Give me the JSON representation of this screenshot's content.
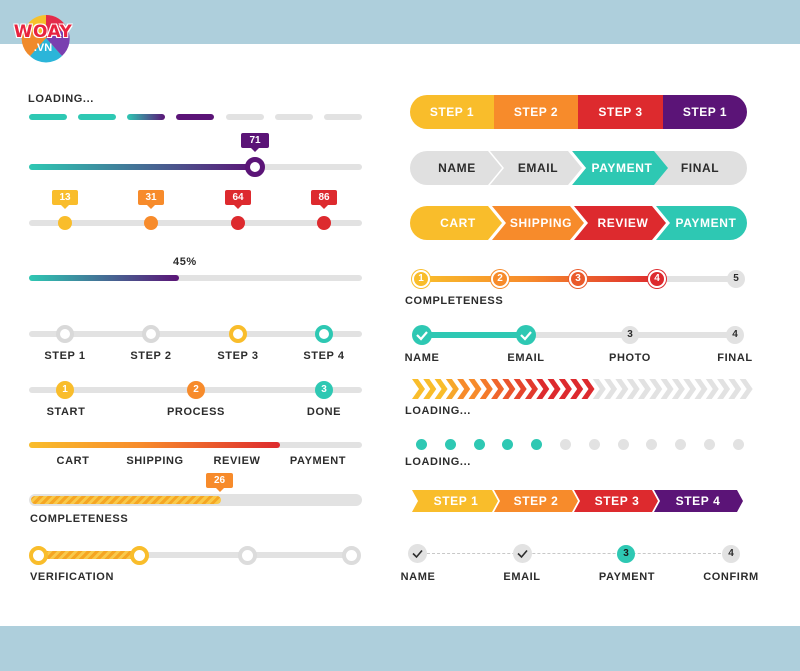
{
  "logo": {
    "word": "WOAY",
    "domain": ".VN"
  },
  "left": {
    "loading_label": "LOADING...",
    "slider_value": "71",
    "markers": [
      "13",
      "31",
      "64",
      "86"
    ],
    "progress_percent": "45%",
    "progress_value": 45,
    "steps_a": [
      "STEP 1",
      "STEP 2",
      "STEP 3",
      "STEP 4"
    ],
    "steps_b": {
      "nums": [
        "1",
        "2",
        "3"
      ],
      "labels": [
        "START",
        "PROCESS",
        "DONE"
      ]
    },
    "cart_steps": [
      "CART",
      "SHIPPING",
      "REVIEW",
      "PAYMENT"
    ],
    "completeness_value": "26",
    "completeness_label": "COMPLETENESS",
    "verification_label": "VERIFICATION"
  },
  "right": {
    "pill1": [
      "STEP 1",
      "STEP 2",
      "STEP 3",
      "STEP 1"
    ],
    "pill2": [
      "NAME",
      "EMAIL",
      "PAYMENT",
      "FINAL"
    ],
    "pill3": [
      "CART",
      "SHIPPING",
      "REVIEW",
      "PAYMENT"
    ],
    "completeness_nums": [
      "1",
      "2",
      "3",
      "4",
      "5"
    ],
    "completeness_label": "COMPLETENESS",
    "check_nums": [
      "3",
      "4"
    ],
    "check_labels": [
      "NAME",
      "EMAIL",
      "PHOTO",
      "FINAL"
    ],
    "chevron_loading_label": "LOADING...",
    "dots_loading_label": "LOADING...",
    "arrows": [
      "STEP 1",
      "STEP 2",
      "STEP 3",
      "STEP 4"
    ],
    "final_nums": [
      "3",
      "4"
    ],
    "final_labels": [
      "NAME",
      "EMAIL",
      "PAYMENT",
      "CONFIRM"
    ]
  },
  "colors": {
    "yellow": "#f9bd2b",
    "orange": "#f78b2b",
    "red": "#dd2a2e",
    "teal": "#2ec8b3",
    "purple": "#5b1477",
    "gray": "#e2e2e2"
  }
}
